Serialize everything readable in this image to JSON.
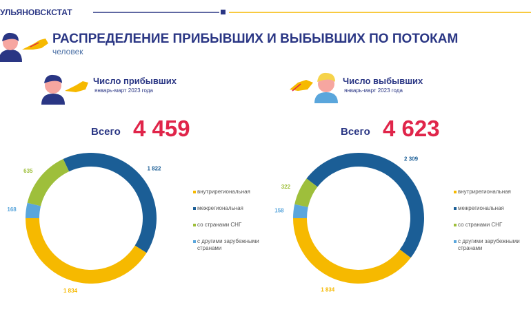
{
  "brand": "УЛЬЯНОВСКСТАТ",
  "title": "РАСПРЕДЕЛЕНИЕ ПРИБЫВШИХ И ВЫБЫВШИХ ПО ПОТОКАМ",
  "subtitle": "человек",
  "chart_data": [
    {
      "type": "pie",
      "title": "Число прибывших",
      "subtitle": "январь-март 2023 года",
      "total_label": "Всего",
      "total": {
        "value": 4459,
        "label": "4 459"
      },
      "categories": [
        "внутрирегиональная",
        "межрегиональная",
        "со странами СНГ",
        "с другими зарубежными странами"
      ],
      "values": [
        1834,
        1822,
        635,
        168
      ],
      "value_labels": [
        "1 834",
        "1 822",
        "635",
        "168"
      ],
      "colors": [
        "#f6b900",
        "#1b5e96",
        "#9ebf3b",
        "#5aa6dc"
      ]
    },
    {
      "type": "pie",
      "title": "Число выбывших",
      "subtitle": "январь-март 2023 года",
      "total_label": "Всего",
      "total": {
        "value": 4623,
        "label": "4 623"
      },
      "categories": [
        "внутрирегиональная",
        "межрегиональная",
        "со странами СНГ",
        "с другими зарубежными странами"
      ],
      "values": [
        1834,
        2309,
        322,
        158
      ],
      "value_labels": [
        "1 834",
        "2 309",
        "322",
        "158"
      ],
      "colors": [
        "#f6b900",
        "#1b5e96",
        "#9ebf3b",
        "#5aa6dc"
      ]
    }
  ]
}
